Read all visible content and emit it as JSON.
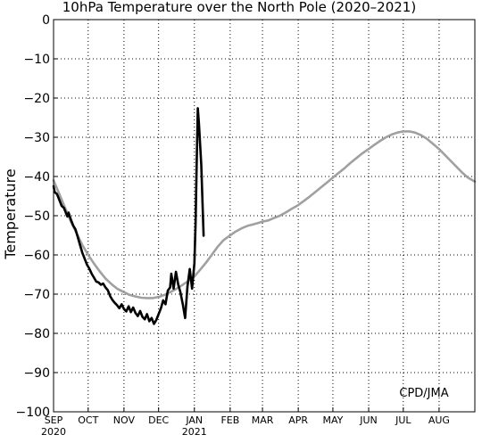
{
  "chart_data": {
    "type": "line",
    "title": "10hPa Temperature over the North Pole (2020–2021)",
    "ylabel": "Temperature",
    "xlabel": "",
    "ylim": [
      -100,
      0
    ],
    "xlim": [
      "2020-09-01",
      "2021-09-01"
    ],
    "grid": true,
    "grid_style": "dotted",
    "yticks": [
      0,
      -10,
      -20,
      -30,
      -40,
      -50,
      -60,
      -70,
      -80,
      -90,
      -100
    ],
    "ytick_labels": [
      "0",
      "−10",
      "−20",
      "−30",
      "−40",
      "−50",
      "−60",
      "−70",
      "−80",
      "−90",
      "−100"
    ],
    "xticks": [
      {
        "date": "2020-09-01",
        "label": "SEP",
        "year": "2020"
      },
      {
        "date": "2020-10-01",
        "label": "OCT"
      },
      {
        "date": "2020-11-01",
        "label": "NOV"
      },
      {
        "date": "2020-12-01",
        "label": "DEC"
      },
      {
        "date": "2021-01-01",
        "label": "JAN",
        "year": "2021"
      },
      {
        "date": "2021-02-01",
        "label": "FEB"
      },
      {
        "date": "2021-03-01",
        "label": "MAR"
      },
      {
        "date": "2021-04-01",
        "label": "APR"
      },
      {
        "date": "2021-05-01",
        "label": "MAY"
      },
      {
        "date": "2021-06-01",
        "label": "JUN"
      },
      {
        "date": "2021-07-01",
        "label": "JUL"
      },
      {
        "date": "2021-08-01",
        "label": "AUG"
      }
    ],
    "annotation": "CPD/JMA",
    "series": [
      {
        "color": "#a0a0a0",
        "points": [
          [
            "2020-09-01",
            -41
          ],
          [
            "2020-09-06",
            -44.5
          ],
          [
            "2020-09-11",
            -48
          ],
          [
            "2020-09-16",
            -51.5
          ],
          [
            "2020-09-21",
            -54.5
          ],
          [
            "2020-09-26",
            -57.5
          ],
          [
            "2020-10-01",
            -60
          ],
          [
            "2020-10-06",
            -62.2
          ],
          [
            "2020-10-11",
            -64.2
          ],
          [
            "2020-10-16",
            -66
          ],
          [
            "2020-10-21",
            -67.4
          ],
          [
            "2020-10-26",
            -68.6
          ],
          [
            "2020-11-01",
            -69.5
          ],
          [
            "2020-11-06",
            -70.2
          ],
          [
            "2020-11-11",
            -70.6
          ],
          [
            "2020-11-16",
            -70.9
          ],
          [
            "2020-11-21",
            -71
          ],
          [
            "2020-11-26",
            -71
          ],
          [
            "2020-12-01",
            -70.7
          ],
          [
            "2020-12-06",
            -70.2
          ],
          [
            "2020-12-11",
            -69.5
          ],
          [
            "2020-12-16",
            -68.7
          ],
          [
            "2020-12-21",
            -67.8
          ],
          [
            "2020-12-26",
            -66.8
          ],
          [
            "2021-01-01",
            -65.5
          ],
          [
            "2021-01-06",
            -63.8
          ],
          [
            "2021-01-11",
            -62
          ],
          [
            "2021-01-16",
            -60
          ],
          [
            "2021-01-21",
            -58
          ],
          [
            "2021-01-26",
            -56.3
          ],
          [
            "2021-02-01",
            -55
          ],
          [
            "2021-02-06",
            -54
          ],
          [
            "2021-02-11",
            -53.2
          ],
          [
            "2021-02-16",
            -52.6
          ],
          [
            "2021-02-21",
            -52.2
          ],
          [
            "2021-02-26",
            -51.8
          ],
          [
            "2021-03-01",
            -51.5
          ],
          [
            "2021-03-06",
            -51.2
          ],
          [
            "2021-03-11",
            -50.6
          ],
          [
            "2021-03-16",
            -50
          ],
          [
            "2021-03-21",
            -49.2
          ],
          [
            "2021-03-26",
            -48.3
          ],
          [
            "2021-04-01",
            -47.3
          ],
          [
            "2021-04-06",
            -46.2
          ],
          [
            "2021-04-11",
            -45.1
          ],
          [
            "2021-04-16",
            -43.9
          ],
          [
            "2021-04-21",
            -42.7
          ],
          [
            "2021-04-26",
            -41.5
          ],
          [
            "2021-05-01",
            -40.3
          ],
          [
            "2021-05-06",
            -39.1
          ],
          [
            "2021-05-11",
            -37.9
          ],
          [
            "2021-05-16",
            -36.6
          ],
          [
            "2021-05-21",
            -35.4
          ],
          [
            "2021-05-26",
            -34.2
          ],
          [
            "2021-06-01",
            -33
          ],
          [
            "2021-06-06",
            -31.9
          ],
          [
            "2021-06-11",
            -30.9
          ],
          [
            "2021-06-16",
            -30
          ],
          [
            "2021-06-21",
            -29.3
          ],
          [
            "2021-06-26",
            -28.8
          ],
          [
            "2021-07-01",
            -28.5
          ],
          [
            "2021-07-06",
            -28.5
          ],
          [
            "2021-07-11",
            -28.8
          ],
          [
            "2021-07-16",
            -29.4
          ],
          [
            "2021-07-21",
            -30.3
          ],
          [
            "2021-07-26",
            -31.5
          ],
          [
            "2021-08-01",
            -33
          ],
          [
            "2021-08-06",
            -34.5
          ],
          [
            "2021-08-11",
            -36
          ],
          [
            "2021-08-16",
            -37.5
          ],
          [
            "2021-08-21",
            -39
          ],
          [
            "2021-08-26",
            -40.3
          ],
          [
            "2021-09-01",
            -41.3
          ]
        ]
      },
      {
        "color": "#000000",
        "points": [
          [
            "2020-09-01",
            -42.5
          ],
          [
            "2020-09-02",
            -44
          ],
          [
            "2020-09-04",
            -44.5
          ],
          [
            "2020-09-06",
            -46
          ],
          [
            "2020-09-08",
            -47.5
          ],
          [
            "2020-09-10",
            -48
          ],
          [
            "2020-09-12",
            -49.5
          ],
          [
            "2020-09-13",
            -50.2
          ],
          [
            "2020-09-14",
            -49.2
          ],
          [
            "2020-09-16",
            -51
          ],
          [
            "2020-09-18",
            -52.5
          ],
          [
            "2020-09-20",
            -53.5
          ],
          [
            "2020-09-22",
            -55.5
          ],
          [
            "2020-09-24",
            -57.5
          ],
          [
            "2020-09-26",
            -59.5
          ],
          [
            "2020-09-28",
            -61
          ],
          [
            "2020-09-30",
            -62.5
          ],
          [
            "2020-10-02",
            -63.5
          ],
          [
            "2020-10-04",
            -64.8
          ],
          [
            "2020-10-06",
            -65.8
          ],
          [
            "2020-10-08",
            -66.8
          ],
          [
            "2020-10-10",
            -67
          ],
          [
            "2020-10-12",
            -67.6
          ],
          [
            "2020-10-14",
            -67.3
          ],
          [
            "2020-10-16",
            -68.3
          ],
          [
            "2020-10-18",
            -69
          ],
          [
            "2020-10-20",
            -70.5
          ],
          [
            "2020-10-22",
            -71.5
          ],
          [
            "2020-10-24",
            -72.2
          ],
          [
            "2020-10-26",
            -72.8
          ],
          [
            "2020-10-28",
            -73.6
          ],
          [
            "2020-10-30",
            -72.6
          ],
          [
            "2020-11-01",
            -73.8
          ],
          [
            "2020-11-03",
            -74.4
          ],
          [
            "2020-11-05",
            -73.1
          ],
          [
            "2020-11-07",
            -74.6
          ],
          [
            "2020-11-09",
            -73.4
          ],
          [
            "2020-11-11",
            -74.8
          ],
          [
            "2020-11-13",
            -75.6
          ],
          [
            "2020-11-15",
            -74.3
          ],
          [
            "2020-11-17",
            -75.8
          ],
          [
            "2020-11-19",
            -76.4
          ],
          [
            "2020-11-21",
            -75.1
          ],
          [
            "2020-11-23",
            -76.9
          ],
          [
            "2020-11-25",
            -76.1
          ],
          [
            "2020-11-27",
            -77.6
          ],
          [
            "2020-11-29",
            -76.6
          ],
          [
            "2020-12-01",
            -75.1
          ],
          [
            "2020-12-03",
            -73.6
          ],
          [
            "2020-12-05",
            -71.6
          ],
          [
            "2020-12-07",
            -72.6
          ],
          [
            "2020-12-09",
            -69.1
          ],
          [
            "2020-12-11",
            -68.3
          ],
          [
            "2020-12-12",
            -64.8
          ],
          [
            "2020-12-14",
            -68.6
          ],
          [
            "2020-12-16",
            -64.3
          ],
          [
            "2020-12-18",
            -67.6
          ],
          [
            "2020-12-20",
            -69.6
          ],
          [
            "2020-12-22",
            -72.6
          ],
          [
            "2020-12-24",
            -76.1
          ],
          [
            "2020-12-26",
            -68.1
          ],
          [
            "2020-12-28",
            -63.6
          ],
          [
            "2020-12-30",
            -68.6
          ],
          [
            "2021-01-01",
            -62.1
          ],
          [
            "2021-01-02",
            -52.1
          ],
          [
            "2021-01-03",
            -36.1
          ],
          [
            "2021-01-04",
            -22.6
          ],
          [
            "2021-01-05",
            -26.6
          ],
          [
            "2021-01-07",
            -37.1
          ],
          [
            "2021-01-09",
            -55.1
          ]
        ]
      }
    ]
  }
}
